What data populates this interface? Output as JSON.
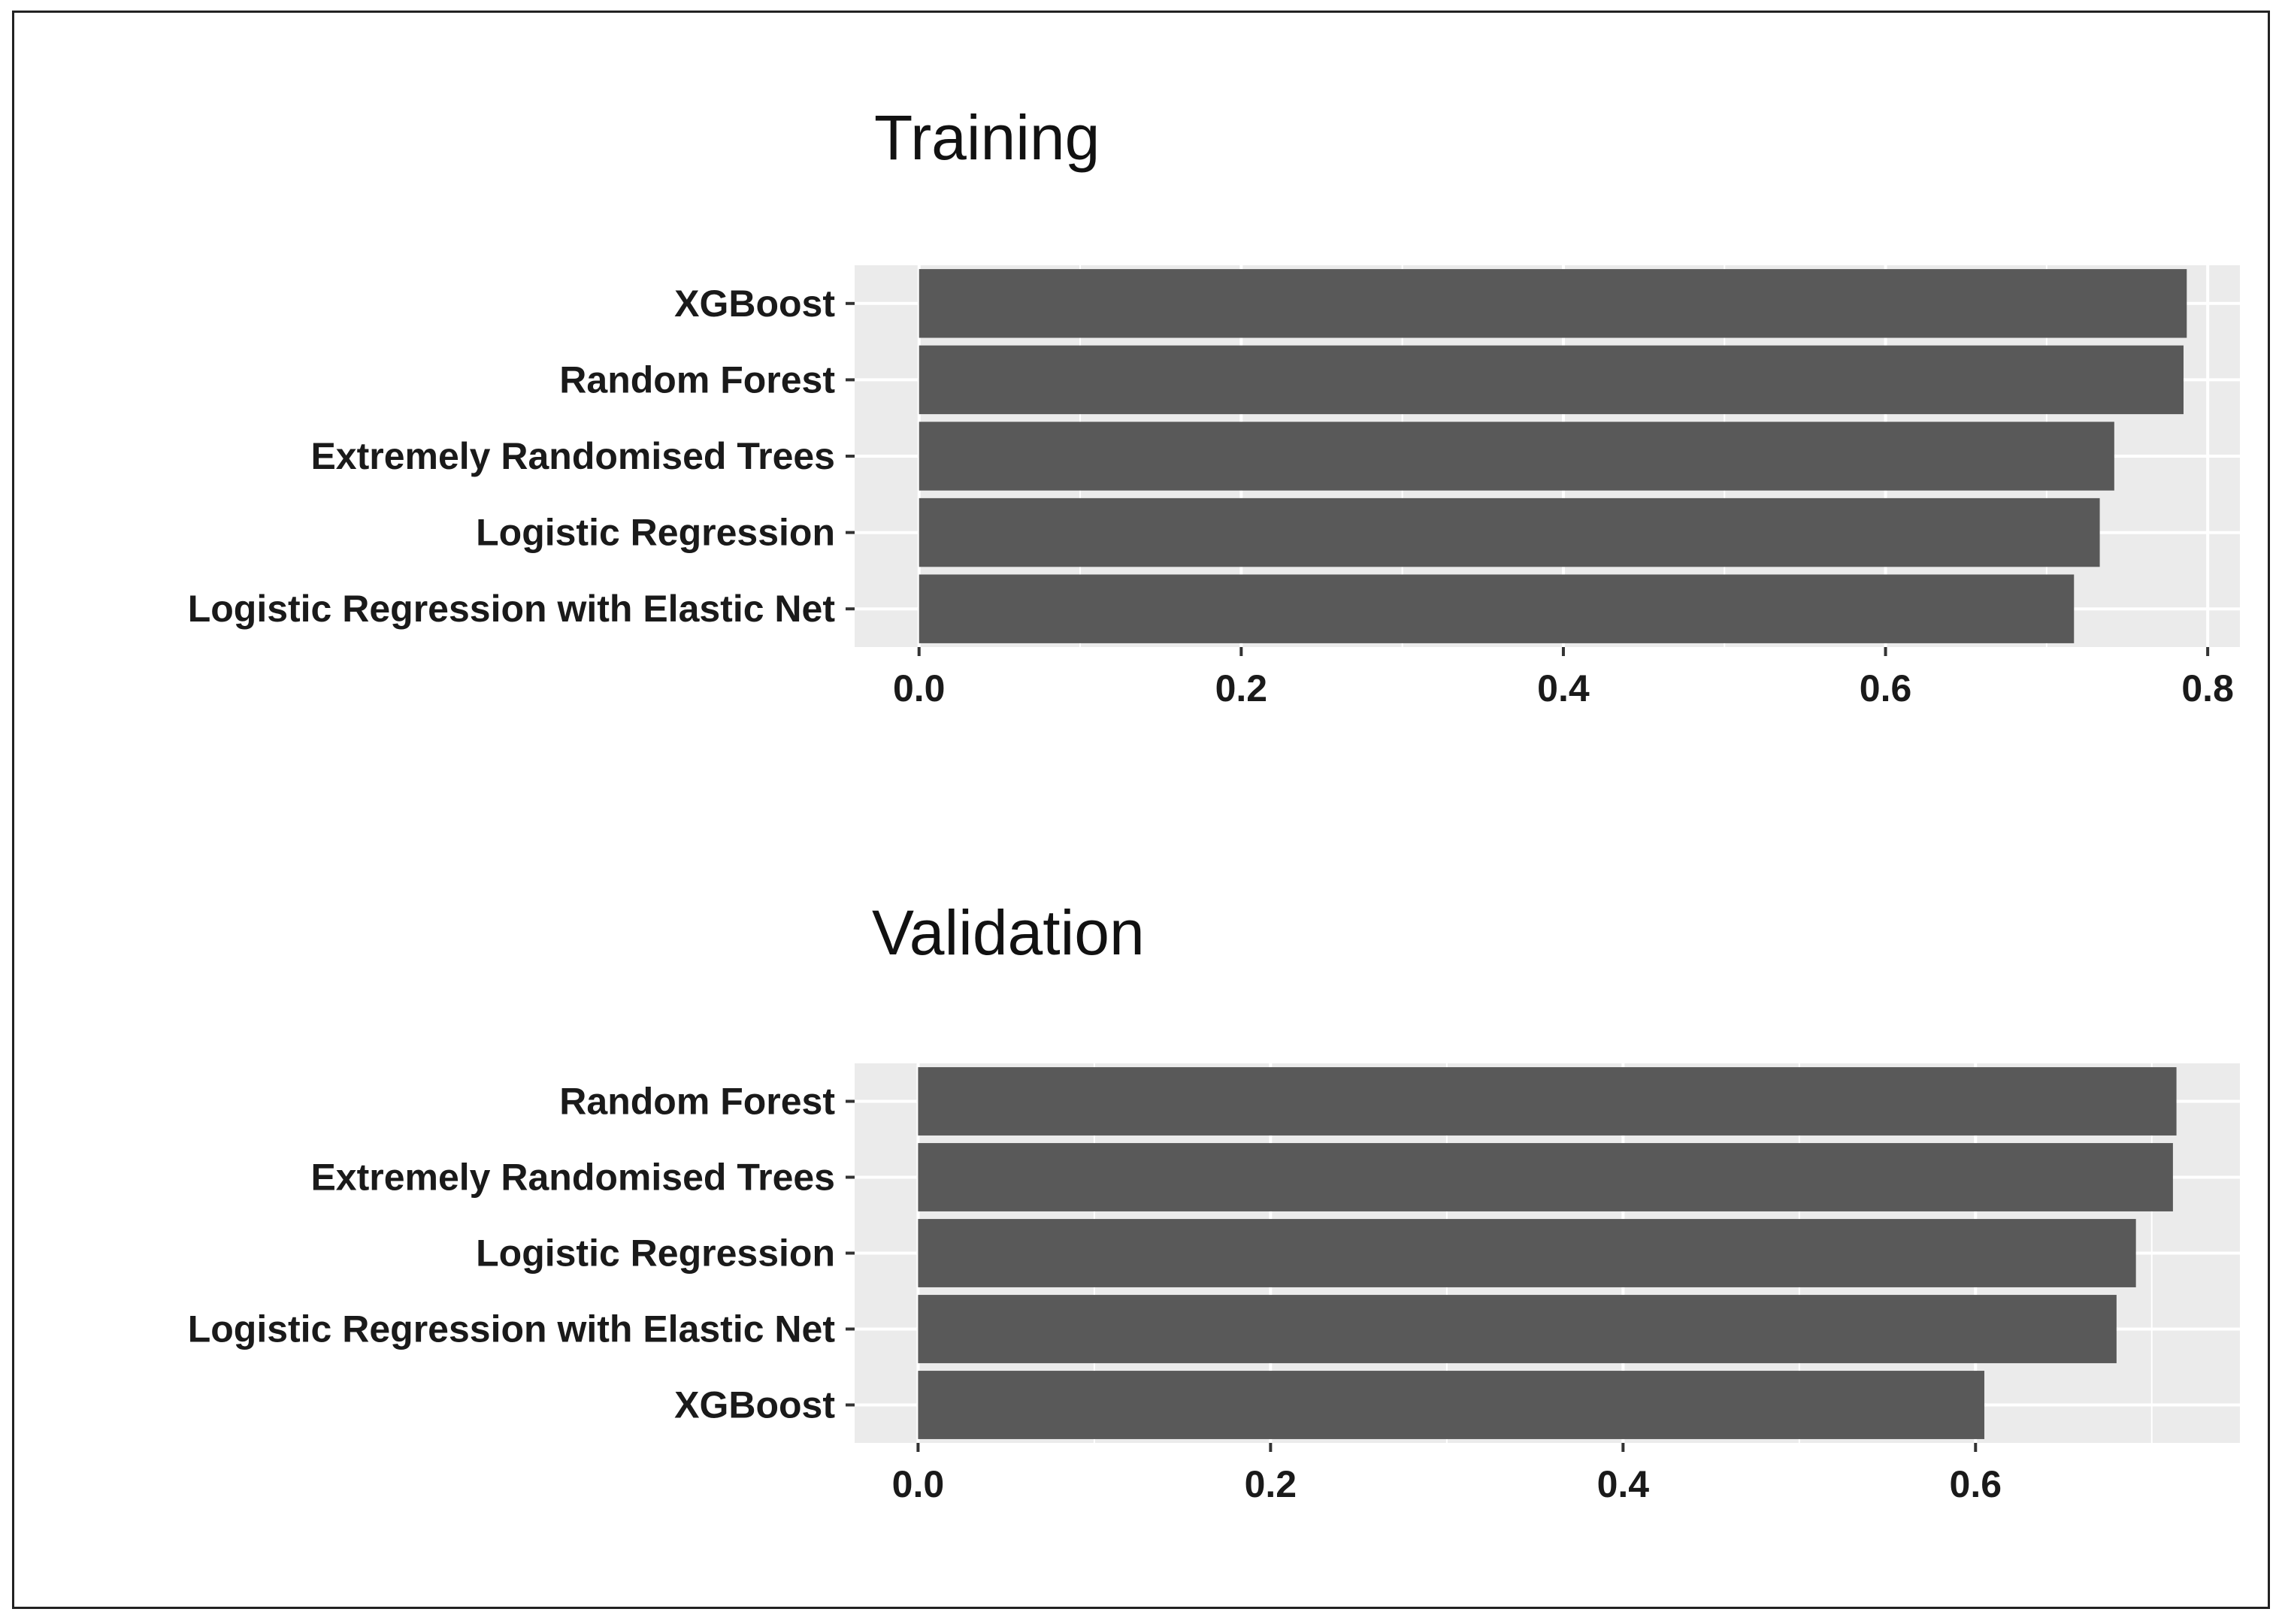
{
  "chart_data": [
    {
      "type": "bar",
      "orientation": "horizontal",
      "title": "Training",
      "xlabel": "",
      "ylabel": "",
      "categories": [
        "XGBoost",
        "Random Forest",
        "Extremely Randomised Trees",
        "Logistic Regression",
        "Logistic Regression with Elastic Net"
      ],
      "values": [
        0.787,
        0.785,
        0.742,
        0.733,
        0.717
      ],
      "xlim": [
        -0.04,
        0.82
      ],
      "xticks": [
        0.0,
        0.2,
        0.4,
        0.6,
        0.8
      ],
      "xtick_labels": [
        "0.0",
        "0.2",
        "0.4",
        "0.6",
        "0.8"
      ],
      "grid": true,
      "bar_color": "#595959",
      "panel_background": "#ebebeb"
    },
    {
      "type": "bar",
      "orientation": "horizontal",
      "title": "Validation",
      "xlabel": "",
      "ylabel": "",
      "categories": [
        "Random Forest",
        "Extremely Randomised Trees",
        "Logistic Regression",
        "Logistic Regression with Elastic Net",
        "XGBoost"
      ],
      "values": [
        0.714,
        0.712,
        0.691,
        0.68,
        0.605
      ],
      "xlim": [
        -0.036,
        0.75
      ],
      "xticks": [
        0.0,
        0.2,
        0.4,
        0.6
      ],
      "xtick_labels": [
        "0.0",
        "0.2",
        "0.4",
        "0.6"
      ],
      "grid": true,
      "bar_color": "#595959",
      "panel_background": "#ebebeb"
    }
  ]
}
